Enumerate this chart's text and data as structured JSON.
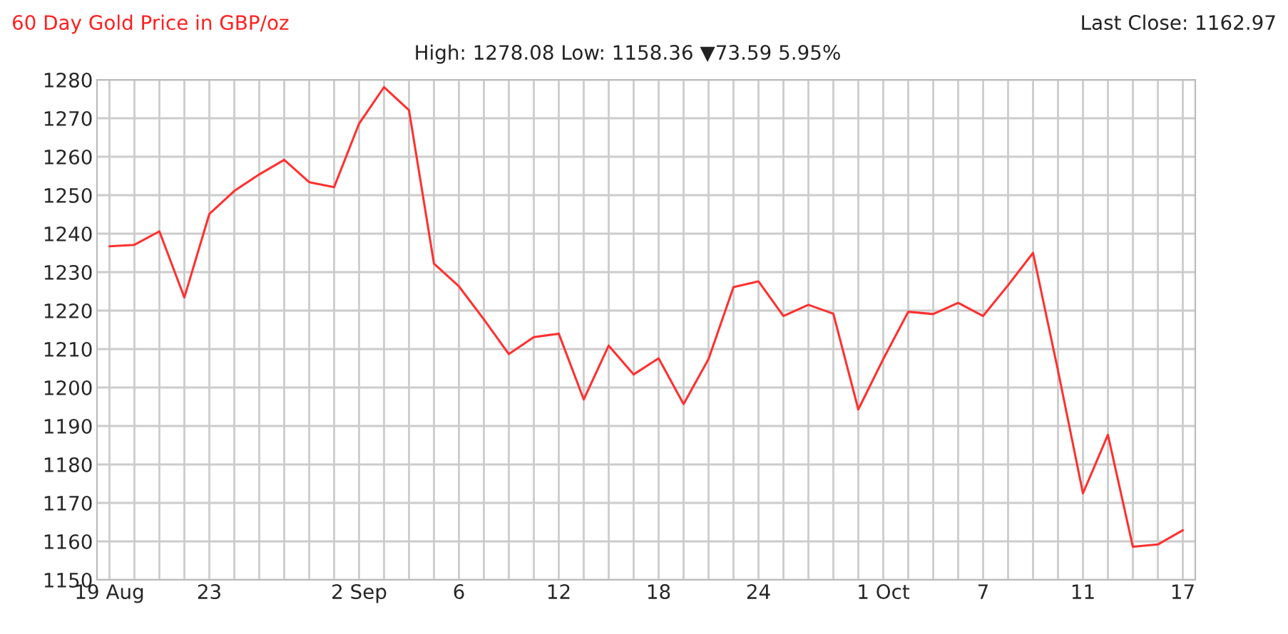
{
  "chart_data": {
    "type": "line",
    "title": "60 Day Gold Price in GBP/oz",
    "subtitle": "High: 1278.08 Low: 1158.36 ▼73.59 5.95%",
    "annotations": [
      "Last Close: 1162.97"
    ],
    "categories": [
      "19 Aug",
      null,
      null,
      null,
      "23",
      null,
      null,
      null,
      null,
      null,
      "2 Sep",
      null,
      null,
      null,
      "6",
      null,
      null,
      null,
      "12",
      null,
      null,
      null,
      "18",
      null,
      null,
      null,
      "24",
      null,
      null,
      null,
      null,
      "1 Oct",
      null,
      null,
      null,
      "7",
      null,
      null,
      null,
      "11",
      null,
      null,
      null,
      "17"
    ],
    "series": [
      {
        "color": "#ff3030",
        "values": [
          1236.7,
          1237.1,
          1240.6,
          1223.4,
          1245.1,
          1251.1,
          1255.4,
          1259.2,
          1253.4,
          1252.1,
          1268.6,
          1278.1,
          1272.1,
          1232.2,
          1226.3,
          1217.7,
          1208.7,
          1213.1,
          1214.0,
          1196.9,
          1210.9,
          1203.4,
          1207.6,
          1195.7,
          1207.4,
          1226.1,
          1227.6,
          1218.6,
          1221.5,
          1219.2,
          1194.3,
          1207.4,
          1219.7,
          1219.1,
          1222.0,
          1218.6,
          1226.6,
          1235.0,
          1204.4,
          1172.5,
          1187.7,
          1158.6,
          1159.2,
          1162.9
        ]
      }
    ],
    "ylim": [
      1150,
      1280
    ],
    "yticks": [
      1150,
      1160,
      1170,
      1180,
      1190,
      1200,
      1210,
      1220,
      1230,
      1240,
      1250,
      1260,
      1270,
      1280
    ],
    "grid": true,
    "legend": false,
    "marker": "none",
    "line_style": "solid"
  }
}
